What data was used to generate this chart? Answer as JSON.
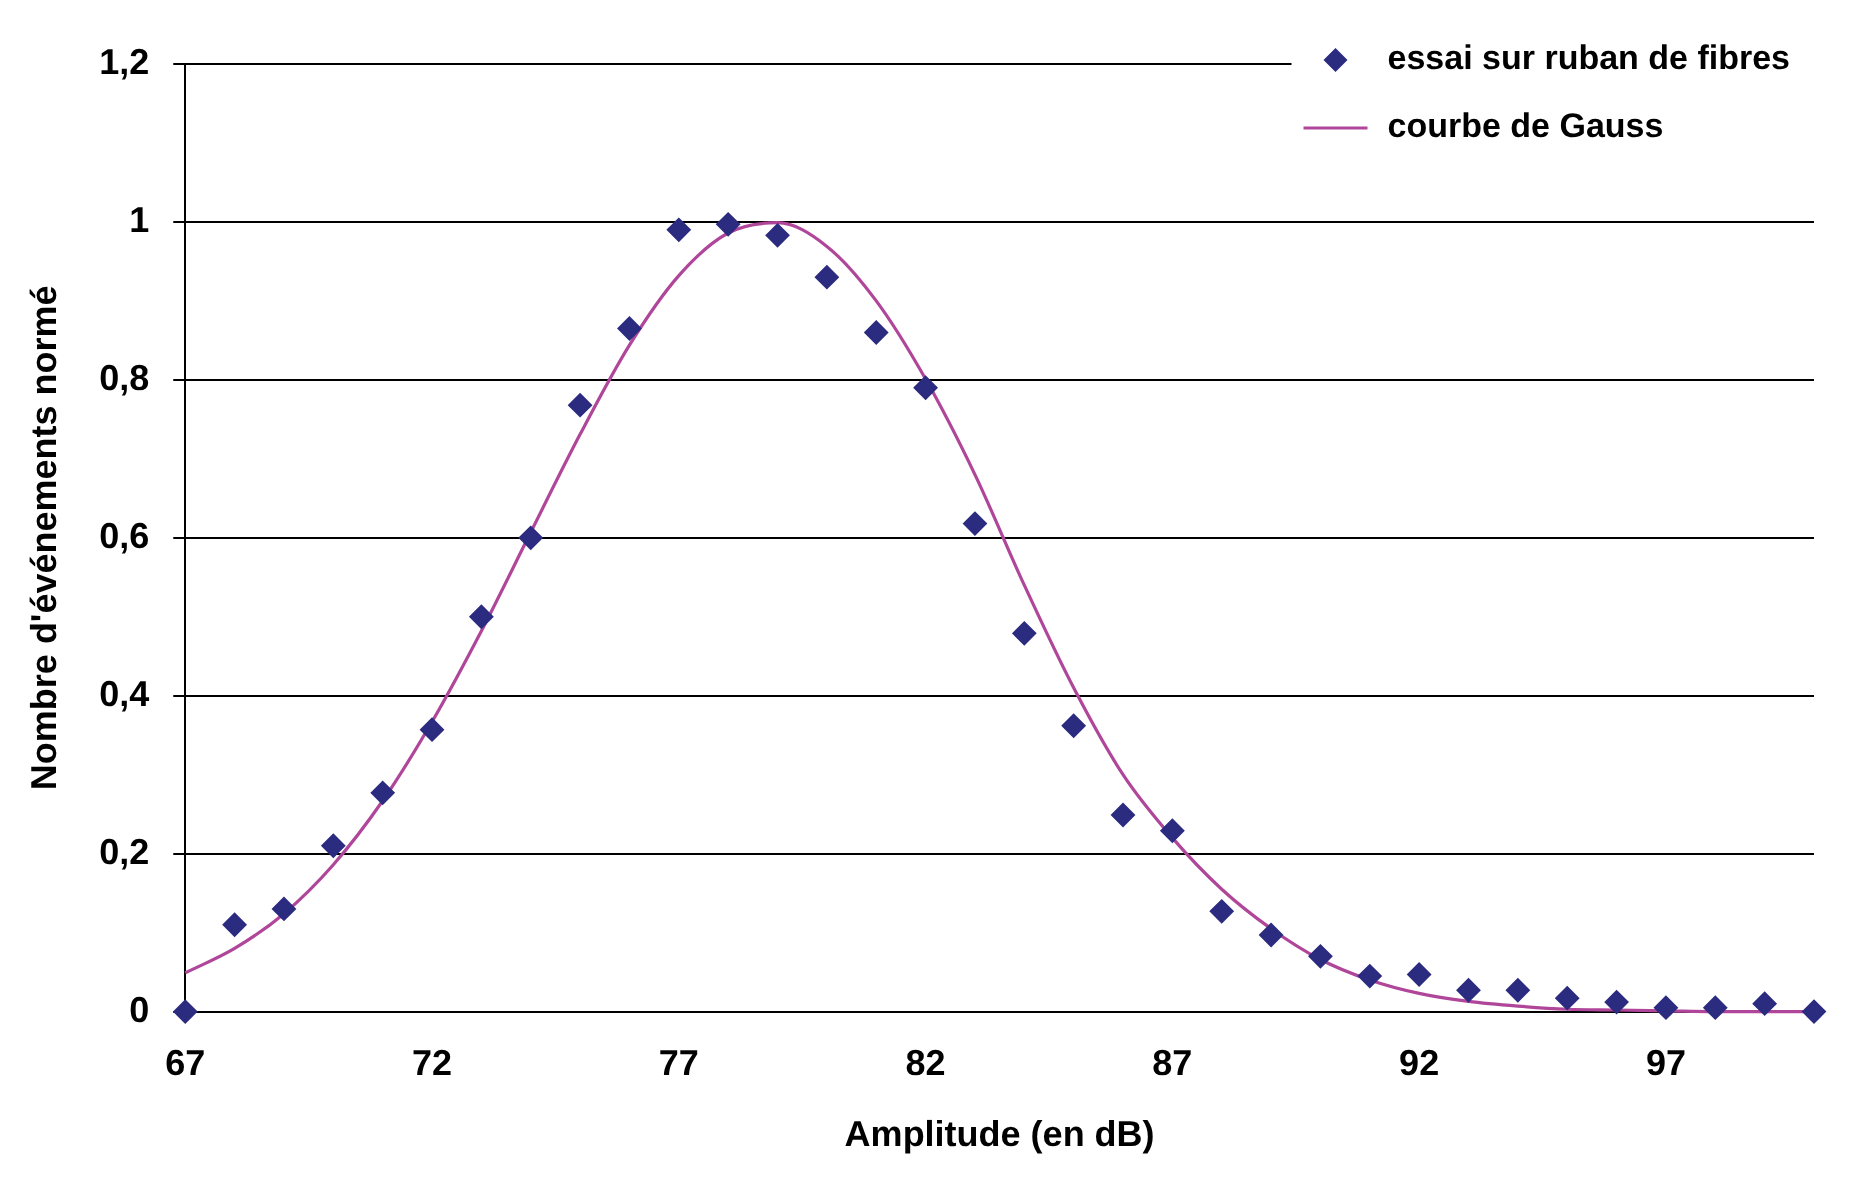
{
  "chart_data": {
    "type": "scatter",
    "xlabel": "Amplitude (en dB)",
    "ylabel": "Nombre d'événements normé",
    "xlim": [
      67,
      100
    ],
    "xticks": [
      67,
      72,
      77,
      82,
      87,
      92,
      97
    ],
    "ylim": [
      0,
      1.2
    ],
    "yticks": [
      0,
      {
        "value": 0.2,
        "label": "0,2"
      },
      {
        "value": 0.4,
        "label": "0,4"
      },
      {
        "value": 0.6,
        "label": "0,6"
      },
      {
        "value": 0.8,
        "label": "0,8"
      },
      1,
      {
        "value": 1.2,
        "label": "1,2"
      }
    ],
    "grid": "y",
    "legend": "top right",
    "series": [
      {
        "name": "essai sur ruban de fibres",
        "marker": "diamond",
        "color": "#2b2b80",
        "x": [
          67,
          68,
          69,
          70,
          71,
          72,
          73,
          74,
          75,
          76,
          77,
          78,
          79,
          80,
          81,
          82,
          83,
          84,
          85,
          86,
          87,
          88,
          89,
          90,
          91,
          92,
          93,
          94,
          95,
          96,
          97,
          98,
          99,
          100
        ],
        "values": [
          0,
          0.11,
          0.13,
          0.21,
          0.277,
          0.357,
          0.5,
          0.6,
          0.768,
          0.865,
          0.99,
          0.997,
          0.983,
          0.93,
          0.86,
          0.79,
          0.618,
          0.479,
          0.362,
          0.249,
          0.229,
          0.127,
          0.097,
          0.07,
          0.045,
          0.047,
          0.027,
          0.027,
          0.017,
          0.012,
          0.005,
          0.005,
          0.01,
          0
        ]
      },
      {
        "name": "courbe de Gauss",
        "type": "line",
        "marker": "none",
        "line_style": "solid",
        "color": "#b0469a",
        "x": [
          67,
          68,
          69,
          70,
          71,
          72,
          73,
          74,
          75,
          76,
          77,
          78,
          79,
          80,
          81,
          82,
          83,
          84,
          85,
          86,
          87,
          88,
          89,
          90,
          91,
          92,
          93,
          94,
          95,
          96,
          97,
          98,
          99,
          100
        ],
        "values": [
          0.049,
          0.08,
          0.124,
          0.186,
          0.267,
          0.367,
          0.482,
          0.607,
          0.731,
          0.844,
          0.932,
          0.986,
          0.999,
          0.969,
          0.9,
          0.801,
          0.68,
          0.54,
          0.41,
          0.3,
          0.22,
          0.155,
          0.105,
          0.066,
          0.04,
          0.023,
          0.013,
          0.007,
          0.003,
          0.002,
          0.001,
          0,
          0,
          0
        ]
      }
    ]
  }
}
